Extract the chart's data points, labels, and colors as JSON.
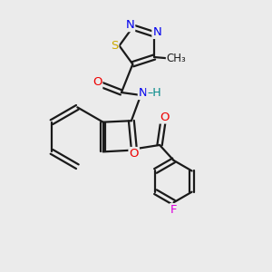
{
  "bg_color": "#ebebeb",
  "bond_color": "#1a1a1a",
  "atom_colors": {
    "N": "#0000ee",
    "O": "#ee0000",
    "S": "#ccaa00",
    "F": "#dd00dd",
    "H": "#008888",
    "C": "#1a1a1a"
  },
  "bond_width": 1.6,
  "font_size": 9.5,
  "fig_size": [
    3.0,
    3.0
  ],
  "dpi": 100
}
